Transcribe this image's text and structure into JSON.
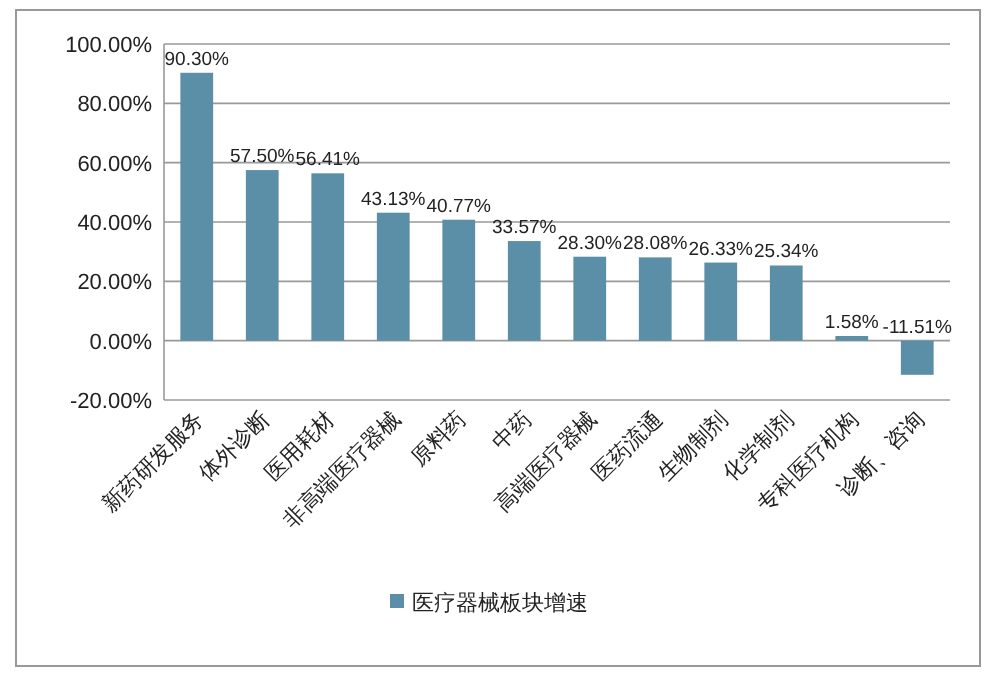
{
  "chart_data": {
    "type": "bar",
    "categories": [
      "新药研发服务",
      "体外诊断",
      "医用耗材",
      "非高端医疗器械",
      "原料药",
      "中药",
      "高端医疗器械",
      "医药流通",
      "生物制剂",
      "化学制剂",
      "专科医疗机构",
      "诊断、咨询"
    ],
    "series": [
      {
        "name": "医疗器械板块增速",
        "color": "#5b8fa8",
        "values": [
          90.3,
          57.5,
          56.41,
          43.13,
          40.77,
          33.57,
          28.3,
          28.08,
          26.33,
          25.34,
          1.58,
          -11.51
        ],
        "value_labels": [
          "90.30%",
          "57.50%",
          "56.41%",
          "43.13%",
          "40.77%",
          "33.57%",
          "28.30%",
          "28.08%",
          "26.33%",
          "25.34%",
          "1.58%",
          "-11.51%"
        ]
      }
    ],
    "ylim": [
      -20,
      100
    ],
    "yticks": [
      {
        "value": -20,
        "label": "-20.00%"
      },
      {
        "value": 0,
        "label": "0.00%"
      },
      {
        "value": 20,
        "label": "20.00%"
      },
      {
        "value": 40,
        "label": "40.00%"
      },
      {
        "value": 60,
        "label": "60.00%"
      },
      {
        "value": 80,
        "label": "80.00%"
      },
      {
        "value": 100,
        "label": "100.00%"
      }
    ],
    "grid": "y",
    "legend": "bottom"
  }
}
